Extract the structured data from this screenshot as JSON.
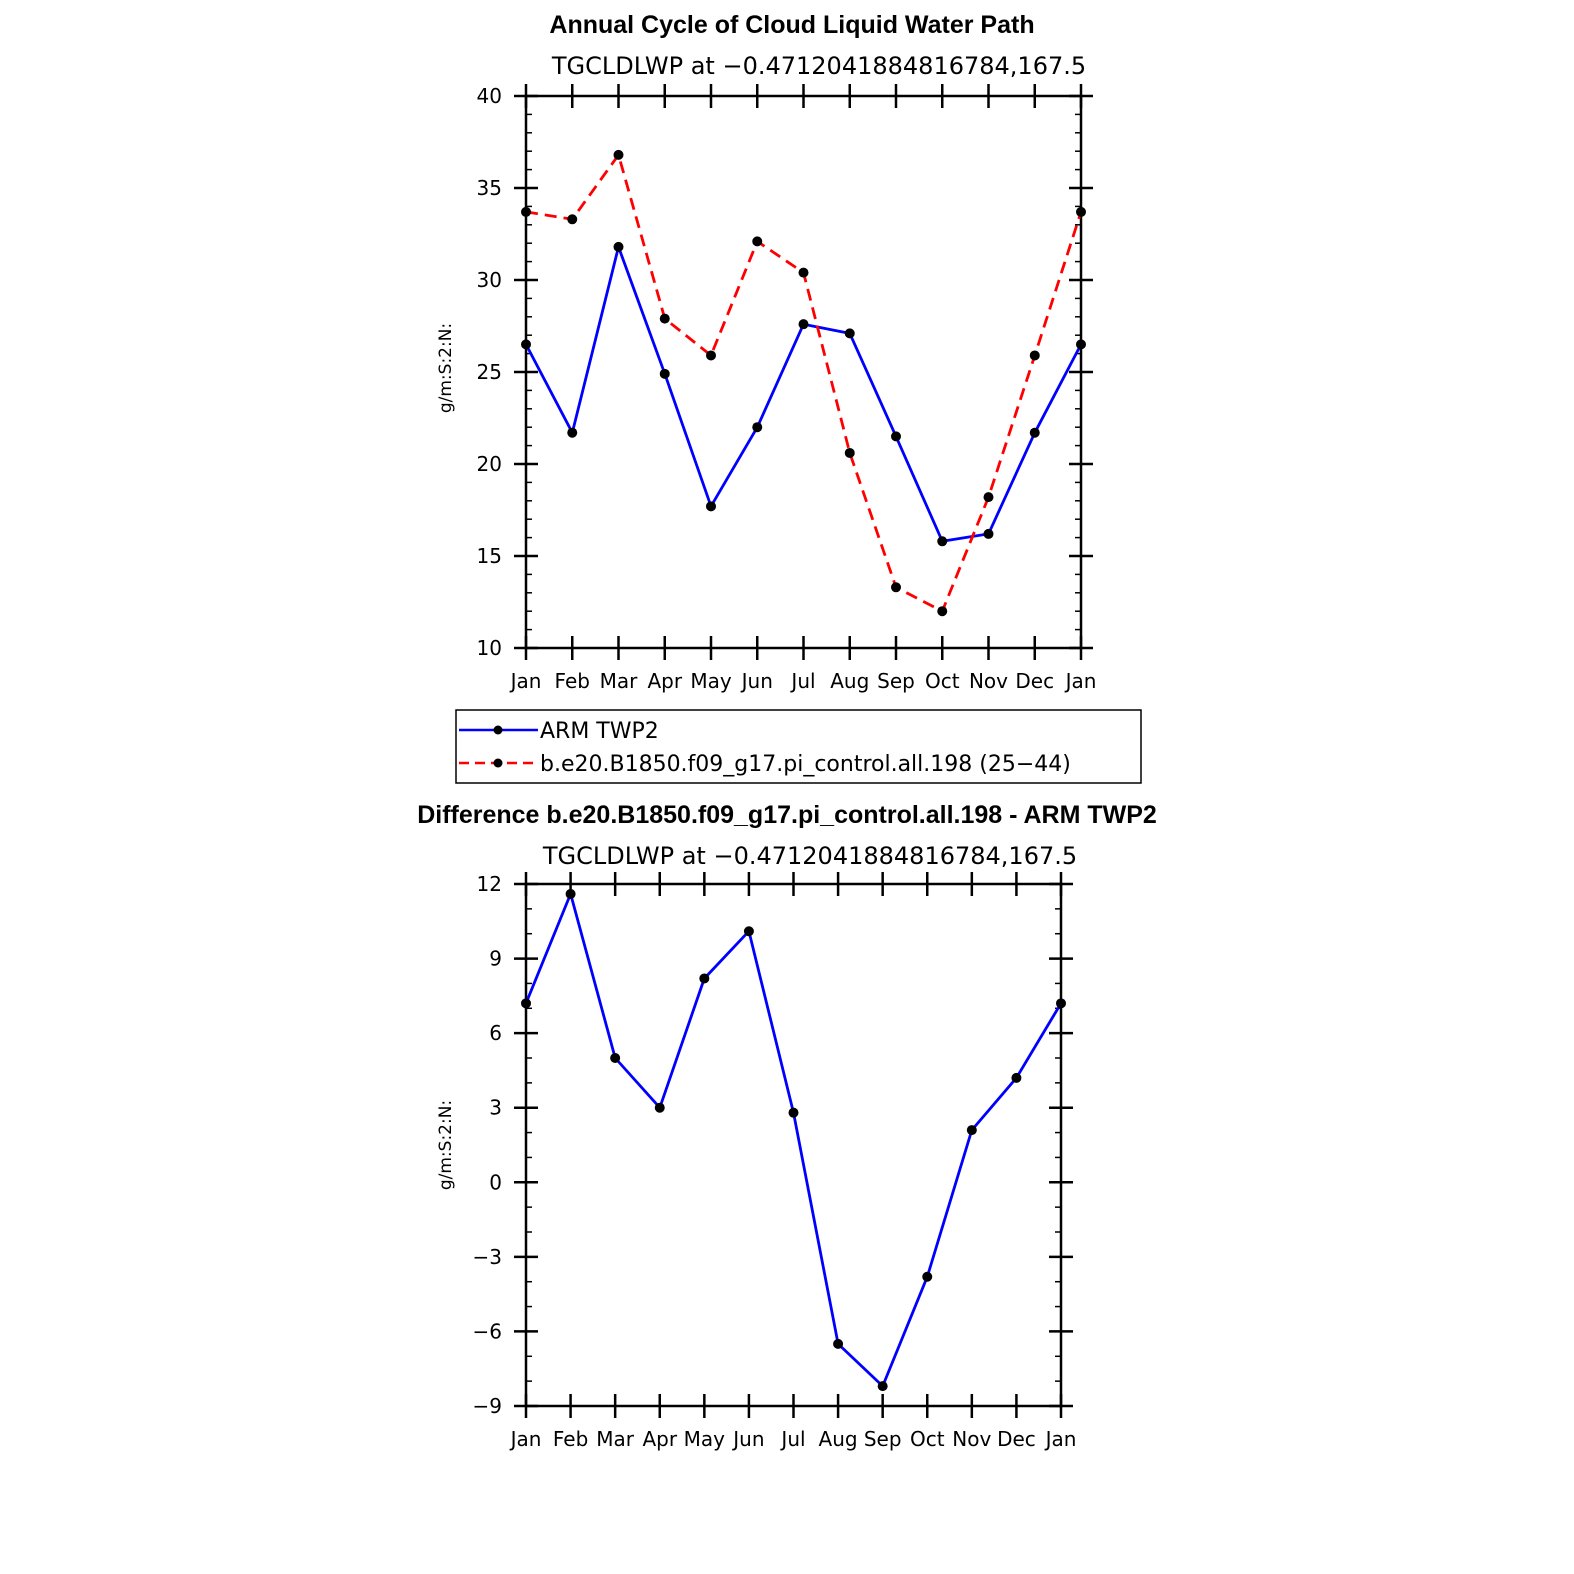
{
  "colors": {
    "blue": "#0000ff",
    "red": "#ff0000",
    "marker": "#000000"
  },
  "chart_data": [
    {
      "type": "line",
      "title": "Annual Cycle of Cloud Liquid Water Path",
      "subtitle": "TGCLDLWP at −0.4712041884816784,167.5",
      "xlabel": "",
      "ylabel": "g/m:S:2:N:",
      "ylim": [
        10,
        40
      ],
      "yticks": [
        "10",
        "15",
        "20",
        "25",
        "30",
        "35",
        "40"
      ],
      "yminor_step": 1,
      "categories": [
        "Jan",
        "Feb",
        "Mar",
        "Apr",
        "May",
        "Jun",
        "Jul",
        "Aug",
        "Sep",
        "Oct",
        "Nov",
        "Dec",
        "Jan"
      ],
      "grid": false,
      "legend_position": "bottom",
      "series": [
        {
          "name": "ARM TWP2",
          "color": "#0000ff",
          "dash": "solid",
          "values": [
            26.5,
            21.7,
            31.8,
            24.9,
            17.7,
            22.0,
            27.6,
            27.1,
            21.5,
            15.8,
            16.2,
            21.7,
            26.5
          ]
        },
        {
          "name": "b.e20.B1850.f09_g17.pi_control.all.198 (25−44)",
          "color": "#ff0000",
          "dash": "dashed",
          "values": [
            33.7,
            33.3,
            36.8,
            27.9,
            25.9,
            32.1,
            30.4,
            20.6,
            13.3,
            12.0,
            18.2,
            25.9,
            33.7
          ]
        }
      ]
    },
    {
      "type": "line",
      "title": "Difference b.e20.B1850.f09_g17.pi_control.all.198 - ARM TWP2",
      "subtitle": "TGCLDLWP at −0.4712041884816784,167.5",
      "xlabel": "",
      "ylabel": "g/m:S:2:N:",
      "ylim": [
        -9,
        12
      ],
      "yticks": [
        "−9",
        "−6",
        "−3",
        "0",
        "3",
        "6",
        "9",
        "12"
      ],
      "yminor_step": 1,
      "categories": [
        "Jan",
        "Feb",
        "Mar",
        "Apr",
        "May",
        "Jun",
        "Jul",
        "Aug",
        "Sep",
        "Oct",
        "Nov",
        "Dec",
        "Jan"
      ],
      "grid": false,
      "series": [
        {
          "name": "",
          "color": "#0000ff",
          "dash": "solid",
          "values": [
            7.2,
            11.6,
            5.0,
            3.0,
            8.2,
            10.1,
            2.8,
            -6.5,
            -8.2,
            -3.8,
            2.1,
            4.2,
            7.2
          ]
        }
      ]
    }
  ]
}
